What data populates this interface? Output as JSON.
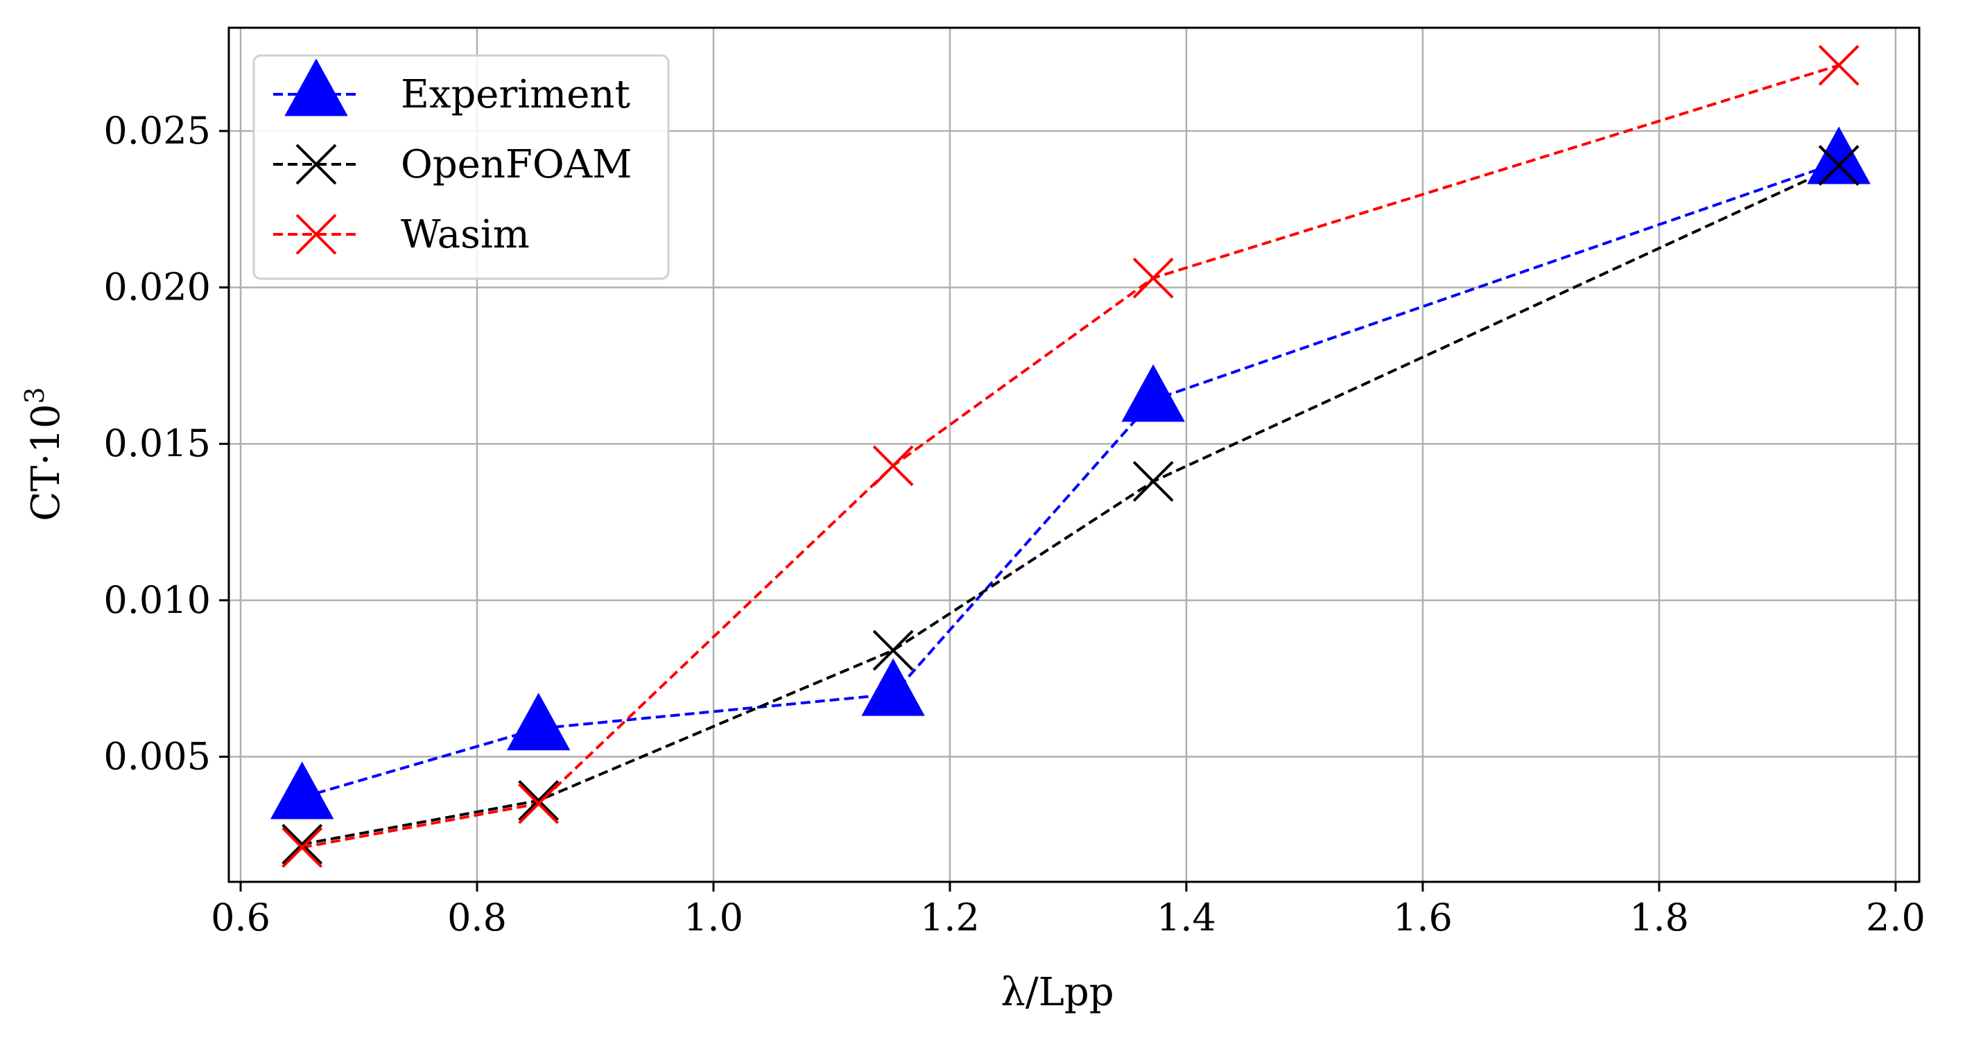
{
  "chart_data": {
    "type": "line",
    "title": "",
    "xlabel": "λ/Lpp",
    "ylabel_base": "CT·10",
    "ylabel_exp": "3",
    "xlim": [
      0.59,
      2.02
    ],
    "ylim": [
      0.001,
      0.0283
    ],
    "xticks": [
      "0.6",
      "0.8",
      "1.0",
      "1.2",
      "1.4",
      "1.6",
      "1.8",
      "2.0"
    ],
    "xtick_values": [
      0.6,
      0.8,
      1.0,
      1.2,
      1.4,
      1.6,
      1.8,
      2.0
    ],
    "yticks": [
      "0.005",
      "0.010",
      "0.015",
      "0.020",
      "0.025"
    ],
    "ytick_values": [
      0.005,
      0.01,
      0.015,
      0.02,
      0.025
    ],
    "grid": true,
    "legend_position": "top-left",
    "series": [
      {
        "name": "Experiment",
        "color": "#0000ff",
        "marker": "triangle",
        "linestyle": "dashed",
        "x": [
          0.652,
          0.852,
          1.152,
          1.372,
          1.952
        ],
        "y": [
          0.0037,
          0.0059,
          0.007,
          0.0164,
          0.024
        ]
      },
      {
        "name": "OpenFOAM",
        "color": "#000000",
        "marker": "x",
        "linestyle": "dashed",
        "x": [
          0.652,
          0.852,
          1.152,
          1.372,
          1.952
        ],
        "y": [
          0.0022,
          0.0036,
          0.0084,
          0.0138,
          0.0239
        ]
      },
      {
        "name": "Wasim",
        "color": "#ff0000",
        "marker": "x",
        "linestyle": "dashed",
        "x": [
          0.652,
          0.852,
          1.152,
          1.372,
          1.952
        ],
        "y": [
          0.0021,
          0.0035,
          0.0143,
          0.0203,
          0.0271
        ]
      }
    ]
  }
}
